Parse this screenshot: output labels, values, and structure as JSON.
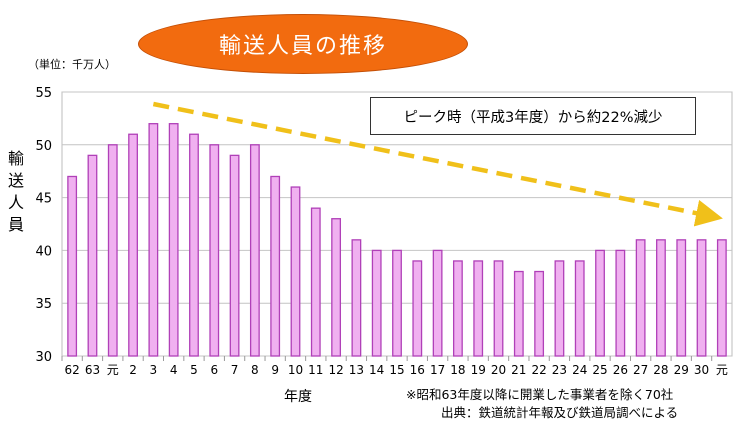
{
  "title": "輸送人員の推移",
  "unit_label": "（単位：千万人）",
  "callout": "ピーク時（平成3年度）から約22%減少",
  "notes": {
    "exclusion": "※昭和63年度以降に開業した事業者を除く70社",
    "source": "出典：鉄道統計年報及び鉄道局調べによる"
  },
  "colors": {
    "bar_fill": "#f0b0f0",
    "bar_stroke": "#b040b8",
    "trend_arrow": "#f0c01a",
    "title_bg": "#f26b0f"
  },
  "chart_data": {
    "type": "bar",
    "xlabel": "年度",
    "ylabel": "輸送人員",
    "ylim": [
      30,
      55
    ],
    "yticks": [
      30,
      35,
      40,
      45,
      50,
      55
    ],
    "grid": true,
    "categories": [
      "62",
      "63",
      "元",
      "2",
      "3",
      "4",
      "5",
      "6",
      "7",
      "8",
      "9",
      "10",
      "11",
      "12",
      "13",
      "14",
      "15",
      "16",
      "17",
      "18",
      "19",
      "20",
      "21",
      "22",
      "23",
      "24",
      "25",
      "26",
      "27",
      "28",
      "29",
      "30",
      "元"
    ],
    "values": [
      47,
      49,
      50,
      51,
      52,
      52,
      51,
      50,
      49,
      50,
      47,
      46,
      44,
      43,
      41,
      40,
      40,
      39,
      40,
      39,
      39,
      39,
      38,
      38,
      39,
      39,
      40,
      40,
      41,
      41,
      41,
      41,
      41
    ]
  }
}
